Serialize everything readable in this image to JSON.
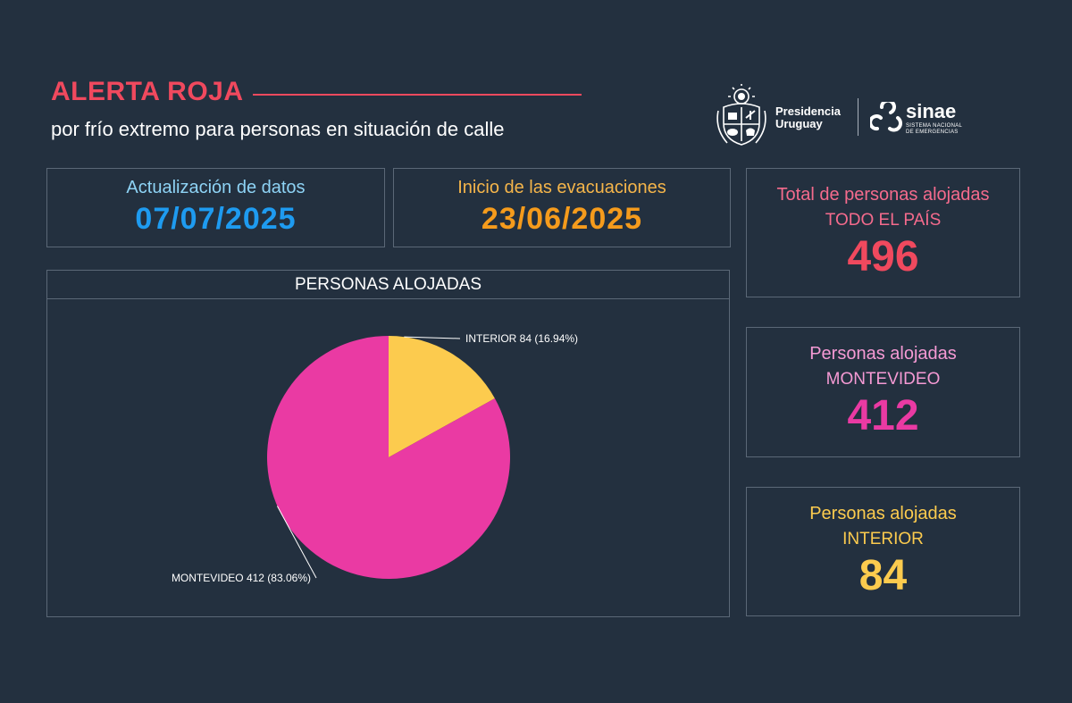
{
  "header": {
    "title": "ALERTA ROJA",
    "subtitle": "por frío extremo para personas en situación de calle"
  },
  "logos": {
    "presidencia_line1": "Presidencia",
    "presidencia_line2": "Uruguay",
    "sinae_name": "sinae",
    "sinae_line1": "SISTEMA NACIONAL",
    "sinae_line2": "DE EMERGENCIAS"
  },
  "cards": {
    "update": {
      "label": "Actualización de datos",
      "value": "07/07/2025"
    },
    "start": {
      "label": "Inicio de las evacuaciones",
      "value": "23/06/2025"
    },
    "total": {
      "label": "Total de personas alojadas",
      "sub": "TODO EL PAÍS",
      "value": "496"
    },
    "montevideo": {
      "label": "Personas alojadas",
      "sub": "MONTEVIDEO",
      "value": "412"
    },
    "interior": {
      "label": "Personas alojadas",
      "sub": "INTERIOR",
      "value": "84"
    }
  },
  "colors": {
    "accent_red": "#f0495e",
    "blue": "#1e9bf0",
    "orange": "#f59b1c",
    "pink": "#ea3aa3",
    "yellow": "#fccb4e",
    "total_label": "#f56b8d",
    "montevideo_label": "#f59ad4",
    "interior_label": "#fccb4e"
  },
  "chart_data": {
    "type": "pie",
    "title": "PERSONAS ALOJADAS",
    "slices": [
      {
        "name": "INTERIOR",
        "value": 84,
        "percent": 16.94,
        "label": "INTERIOR 84 (16.94%)",
        "color": "#fccb4e"
      },
      {
        "name": "MONTEVIDEO",
        "value": 412,
        "percent": 83.06,
        "label": "MONTEVIDEO 412 (83.06%)",
        "color": "#ea3aa3"
      }
    ]
  }
}
